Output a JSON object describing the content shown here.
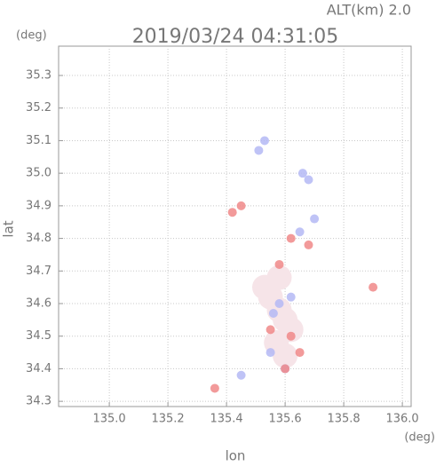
{
  "chart_data": {
    "type": "scatter",
    "title": "2019/03/24 04:31:05",
    "subtitle": "ALT(km) 2.0",
    "x_label": "lon",
    "y_label": "lat",
    "x_unit": "(deg)",
    "y_unit": "(deg)",
    "xlim": [
      134.827,
      136.03
    ],
    "ylim": [
      34.284,
      35.39
    ],
    "xticks": [
      {
        "value": 135,
        "label": "135.0"
      },
      135.2,
      135.4,
      135.6,
      135.8,
      {
        "value": 136,
        "label": "136.0"
      }
    ],
    "yticks": [
      {
        "value": 34.3,
        "label": "34.3"
      },
      34.4,
      34.5,
      34.6,
      34.7,
      34.8,
      34.9,
      {
        "value": 35,
        "label": "35.0"
      },
      35.1,
      35.2,
      35.3
    ],
    "grid": true,
    "series": [
      {
        "color": "#f6e4e8",
        "x": [
          135.55,
          135.58,
          135.6,
          135.62,
          135.57,
          135.6,
          135.53,
          135.58
        ],
        "y": [
          34.62,
          34.58,
          34.55,
          34.52,
          34.48,
          34.44,
          34.65,
          34.68
        ]
      },
      {
        "color": "#b4b8f4",
        "x": [
          135.53,
          135.51,
          135.68,
          135.66,
          135.58,
          135.56,
          135.55,
          135.45,
          135.65,
          135.6,
          135.62,
          135.7
        ],
        "y": [
          35.1,
          35.07,
          34.98,
          35.0,
          34.6,
          34.57,
          34.45,
          34.38,
          34.82,
          34.4,
          34.62,
          34.86
        ]
      },
      {
        "color": "#f08888",
        "x": [
          135.36,
          135.62,
          135.45,
          135.9,
          135.62,
          135.6,
          135.58,
          135.65,
          135.42,
          135.55,
          135.68
        ],
        "y": [
          34.34,
          34.5,
          34.9,
          34.65,
          34.8,
          34.4,
          34.72,
          34.45,
          34.88,
          34.52,
          34.78
        ]
      }
    ]
  }
}
